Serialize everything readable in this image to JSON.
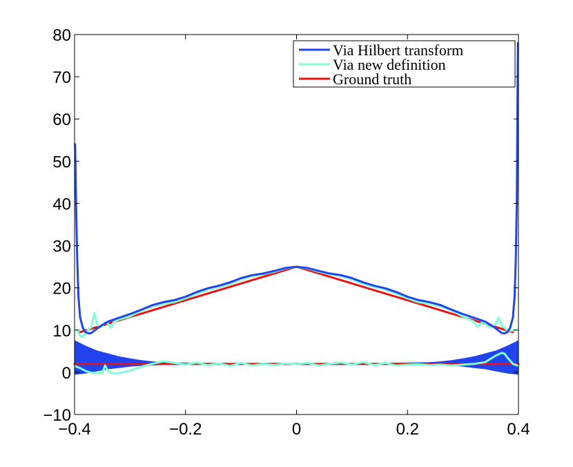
{
  "chart_data": {
    "type": "line",
    "title": "",
    "xlabel": "",
    "ylabel": "",
    "xlim": [
      -0.4,
      0.4
    ],
    "ylim": [
      -10,
      80
    ],
    "xticks": [
      -0.4,
      -0.2,
      0,
      0.2,
      0.4
    ],
    "xtick_labels": [
      "−0.4",
      "−0.2",
      "0",
      "0.2",
      "0.4"
    ],
    "yticks": [
      -10,
      0,
      10,
      20,
      30,
      40,
      50,
      60,
      70,
      80
    ],
    "ytick_labels": [
      "−10",
      "0",
      "10",
      "20",
      "30",
      "40",
      "50",
      "60",
      "70",
      "80"
    ],
    "grid": false,
    "legend_position": "top-right",
    "legend": [
      {
        "label": "Via Hilbert transform",
        "color": "#2244ee"
      },
      {
        "label": "Via new definition",
        "color": "#7fffd4"
      },
      {
        "label": "Ground truth",
        "color": "#ee1111"
      }
    ],
    "series": [
      {
        "name": "Via Hilbert transform",
        "color": "#2244ee",
        "role": "upper curve",
        "x": [
          -0.399,
          -0.397,
          -0.395,
          -0.393,
          -0.39,
          -0.385,
          -0.38,
          -0.375,
          -0.37,
          -0.36,
          -0.35,
          -0.34,
          -0.32,
          -0.3,
          -0.28,
          -0.26,
          -0.24,
          -0.22,
          -0.2,
          -0.18,
          -0.16,
          -0.14,
          -0.12,
          -0.1,
          -0.08,
          -0.06,
          -0.04,
          -0.02,
          0.0,
          0.02,
          0.04,
          0.06,
          0.08,
          0.1,
          0.12,
          0.14,
          0.16,
          0.18,
          0.2,
          0.22,
          0.24,
          0.26,
          0.28,
          0.3,
          0.32,
          0.34,
          0.35,
          0.36,
          0.37,
          0.375,
          0.38,
          0.385,
          0.39,
          0.393,
          0.395,
          0.397,
          0.399
        ],
        "y": [
          54,
          38,
          26,
          18,
          13,
          10.5,
          9.5,
          9.2,
          9.3,
          10.3,
          11.2,
          12.0,
          12.9,
          13.8,
          14.8,
          15.9,
          16.6,
          17.1,
          17.9,
          19.0,
          19.9,
          20.5,
          21.3,
          22.3,
          23.0,
          23.4,
          24.0,
          24.7,
          25.0,
          24.7,
          24.0,
          23.4,
          23.0,
          22.3,
          21.3,
          20.5,
          19.9,
          19.0,
          17.9,
          17.1,
          16.6,
          15.9,
          14.8,
          13.8,
          12.9,
          12.0,
          11.2,
          10.3,
          9.3,
          9.2,
          9.5,
          10.5,
          13,
          18,
          26,
          40,
          78
        ]
      },
      {
        "name": "Via Hilbert transform",
        "color": "#2244ee",
        "role": "lower band upper edge",
        "x": [
          -0.4,
          -0.38,
          -0.36,
          -0.34,
          -0.32,
          -0.3,
          -0.28,
          -0.26,
          -0.24,
          -0.2,
          -0.1,
          0.0,
          0.1,
          0.2,
          0.24,
          0.26,
          0.28,
          0.3,
          0.32,
          0.34,
          0.36,
          0.38,
          0.4
        ],
        "y": [
          7.5,
          6.2,
          5.1,
          4.4,
          3.7,
          3.2,
          2.8,
          2.5,
          2.3,
          2.2,
          2.1,
          2.0,
          2.1,
          2.2,
          2.3,
          2.5,
          2.8,
          3.2,
          3.7,
          4.4,
          5.1,
          6.2,
          7.5
        ]
      },
      {
        "name": "Via Hilbert transform",
        "color": "#2244ee",
        "role": "lower band lower edge",
        "x": [
          -0.4,
          -0.38,
          -0.36,
          -0.34,
          -0.32,
          -0.3,
          -0.28,
          -0.26,
          -0.24,
          -0.2,
          -0.1,
          0.0,
          0.1,
          0.2,
          0.24,
          0.26,
          0.28,
          0.3,
          0.32,
          0.34,
          0.36,
          0.38,
          0.4
        ],
        "y": [
          -0.5,
          -0.2,
          0.3,
          0.8,
          1.1,
          1.4,
          1.6,
          1.7,
          1.8,
          1.8,
          1.8,
          1.8,
          1.8,
          1.8,
          1.8,
          1.7,
          1.6,
          1.4,
          1.1,
          0.8,
          0.3,
          -0.2,
          -0.5
        ]
      },
      {
        "name": "Via new definition",
        "color": "#7fffd4",
        "role": "upper curve",
        "x": [
          -0.396,
          -0.39,
          -0.385,
          -0.38,
          -0.375,
          -0.37,
          -0.367,
          -0.364,
          -0.36,
          -0.355,
          -0.35,
          -0.345,
          -0.34,
          -0.335,
          -0.33,
          -0.32,
          -0.3,
          -0.28,
          -0.26,
          -0.24,
          -0.22,
          -0.2,
          -0.18,
          -0.16,
          -0.14,
          -0.12,
          -0.1,
          -0.08,
          -0.06,
          -0.04,
          -0.02,
          0.0,
          0.02,
          0.04,
          0.06,
          0.08,
          0.1,
          0.12,
          0.14,
          0.16,
          0.18,
          0.2,
          0.22,
          0.24,
          0.26,
          0.28,
          0.3,
          0.32,
          0.325,
          0.33,
          0.335,
          0.34,
          0.345,
          0.35,
          0.355,
          0.36,
          0.364,
          0.367,
          0.37,
          0.375,
          0.38,
          0.385,
          0.39,
          0.396
        ],
        "y": [
          10.0,
          8.7,
          8.4,
          9.3,
          10.2,
          10.6,
          12.5,
          14.0,
          11.5,
          10.6,
          11.0,
          11.8,
          11.6,
          10.5,
          11.8,
          12.5,
          13.2,
          14.6,
          15.6,
          16.2,
          16.6,
          17.5,
          18.6,
          19.6,
          20.2,
          20.9,
          22.0,
          22.8,
          23.2,
          23.8,
          24.6,
          25.0,
          24.6,
          23.8,
          23.2,
          22.8,
          22.0,
          20.9,
          20.2,
          19.6,
          18.6,
          17.5,
          16.6,
          16.2,
          15.6,
          14.6,
          13.2,
          12.0,
          10.8,
          11.2,
          11.9,
          11.5,
          10.9,
          10.6,
          11.0,
          11.6,
          13.0,
          12.2,
          11.0,
          10.5,
          10.0,
          9.8,
          9.9,
          10.0
        ]
      },
      {
        "name": "Via new definition",
        "color": "#7fffd4",
        "role": "lower curve",
        "x": [
          -0.4,
          -0.39,
          -0.38,
          -0.37,
          -0.36,
          -0.35,
          -0.345,
          -0.34,
          -0.335,
          -0.33,
          -0.32,
          -0.31,
          -0.3,
          -0.28,
          -0.26,
          -0.24,
          -0.22,
          -0.2,
          -0.18,
          -0.16,
          -0.14,
          -0.12,
          -0.1,
          -0.08,
          -0.06,
          -0.04,
          -0.02,
          0.0,
          0.02,
          0.04,
          0.06,
          0.08,
          0.1,
          0.12,
          0.14,
          0.16,
          0.18,
          0.2,
          0.22,
          0.24,
          0.26,
          0.28,
          0.3,
          0.32,
          0.34,
          0.35,
          0.36,
          0.37,
          0.375,
          0.38,
          0.39,
          0.4
        ],
        "y": [
          1.5,
          1.0,
          0.3,
          -0.1,
          -0.2,
          -0.1,
          1.6,
          0.4,
          -0.1,
          -0.3,
          -0.2,
          0.1,
          0.4,
          1.3,
          2.0,
          2.6,
          2.2,
          1.8,
          2.3,
          1.7,
          2.1,
          1.5,
          2.2,
          1.6,
          2.0,
          1.7,
          2.1,
          1.9,
          2.2,
          1.6,
          2.0,
          2.3,
          1.8,
          2.4,
          1.7,
          2.2,
          1.6,
          1.8,
          1.9,
          1.7,
          1.8,
          1.6,
          1.8,
          2.0,
          2.4,
          3.2,
          4.0,
          4.6,
          4.4,
          3.5,
          2.0,
          1.5
        ]
      },
      {
        "name": "Ground truth",
        "color": "#ee1111",
        "role": "upper line",
        "x": [
          -0.39,
          0.0,
          0.39
        ],
        "y": [
          9.5,
          25.0,
          9.5
        ]
      },
      {
        "name": "Ground truth",
        "color": "#ee1111",
        "role": "lower line",
        "x": [
          -0.4,
          0.4
        ],
        "y": [
          2.0,
          2.0
        ]
      }
    ]
  }
}
